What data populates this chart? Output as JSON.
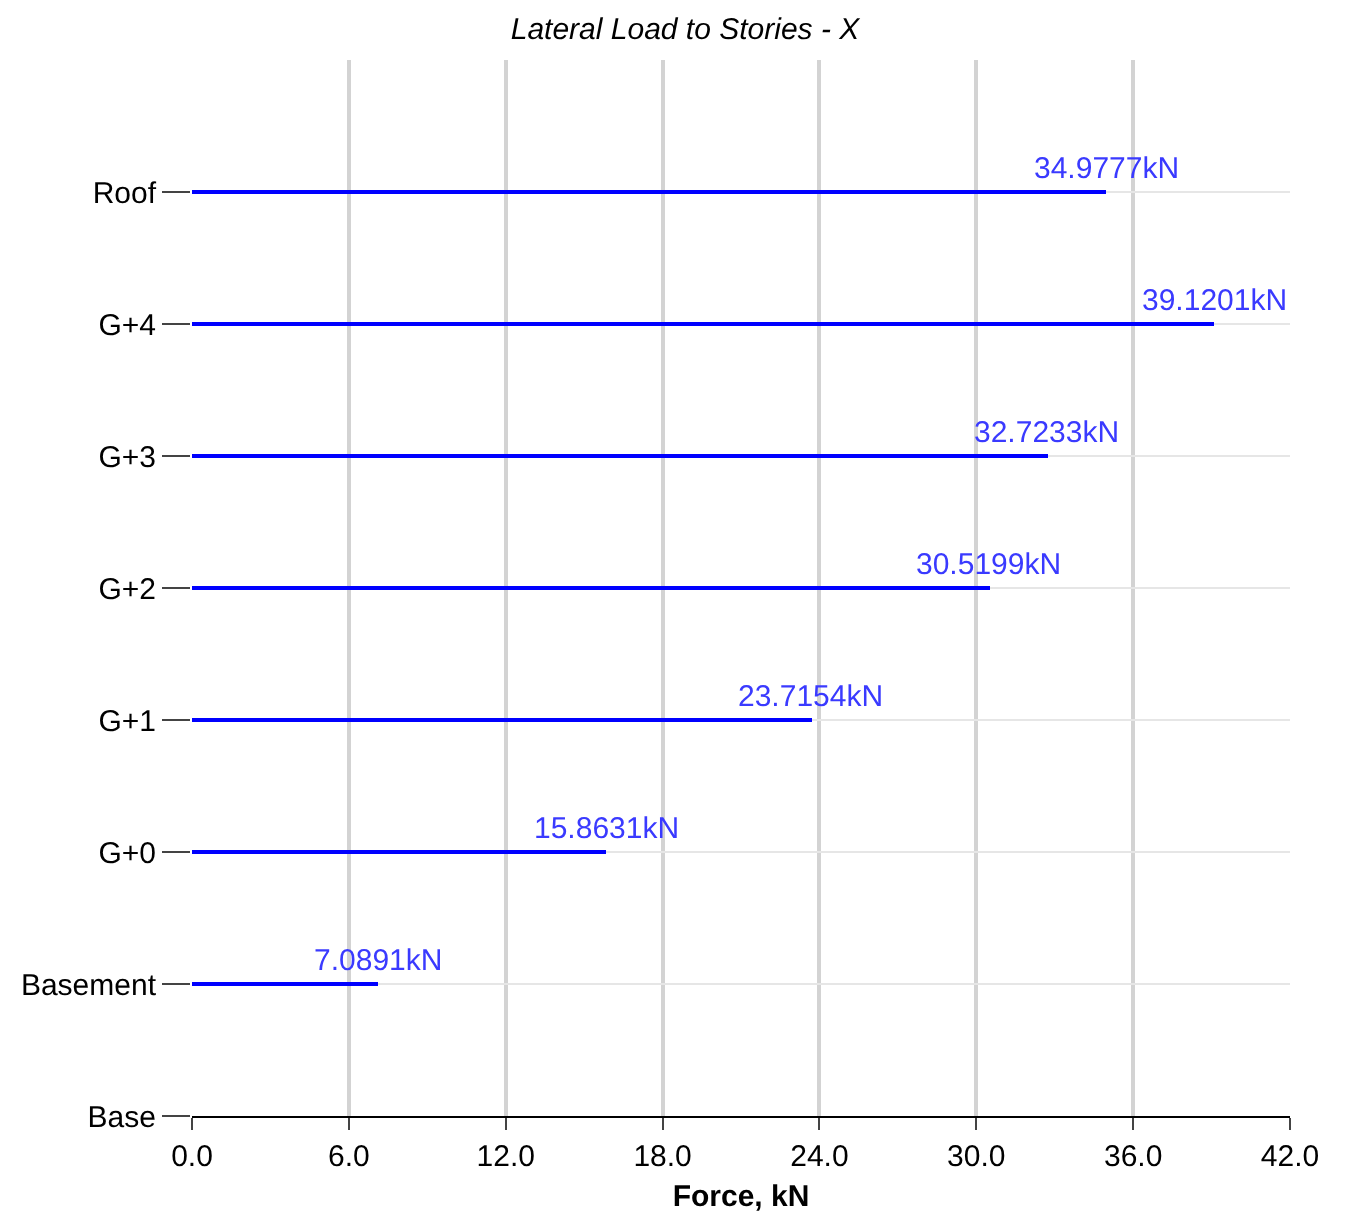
{
  "chart_data": {
    "type": "bar",
    "orientation": "horizontal",
    "title": "Lateral Load to Stories - X",
    "xlabel": "Force, kN",
    "categories": [
      "Roof",
      "G+4",
      "G+3",
      "G+2",
      "G+1",
      "G+0",
      "Basement",
      "Base"
    ],
    "values": [
      34.9777,
      39.1201,
      32.7233,
      30.5199,
      23.7154,
      15.8631,
      7.0891,
      null
    ],
    "value_labels": [
      "34.9777kN",
      "39.1201kN",
      "32.7233kN",
      "30.5199kN",
      "23.7154kN",
      "15.8631kN",
      "7.0891kN",
      null
    ],
    "color": "#0000ff",
    "xlim": [
      0,
      42
    ],
    "xticks": [
      {
        "value": 0,
        "label": "0.0"
      },
      {
        "value": 6,
        "label": "6.0"
      },
      {
        "value": 12,
        "label": "12.0"
      },
      {
        "value": 18,
        "label": "18.0"
      },
      {
        "value": 24,
        "label": "24.0"
      },
      {
        "value": 30,
        "label": "30.0"
      },
      {
        "value": 36,
        "label": "36.0"
      },
      {
        "value": 42,
        "label": "42.0"
      }
    ],
    "grid": true
  }
}
